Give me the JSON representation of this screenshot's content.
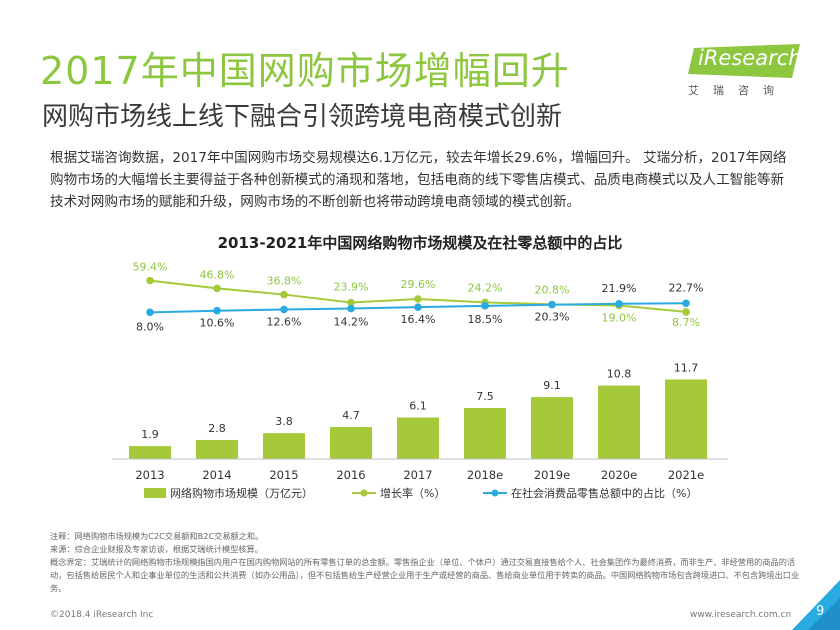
{
  "page": {
    "title": "2017年中国网购市场增幅回升",
    "subtitle": "网购市场线上线下融合引领跨境电商模式创新",
    "intro": "根据艾瑞咨询数据，2017年中国网购市场交易规模达6.1万亿元，较去年增长29.6%，增幅回升。 艾瑞分析，2017年网络购物市场的大幅增长主要得益于各种创新模式的涌现和落地，包括电商的线下零售店模式、品质电商模式以及人工智能等新技术对网购市场的赋能和升级，网购市场的不断创新也将带动跨境电商领域的模式创新。",
    "logo_text": "iResearch",
    "logo_cn": "艾瑞咨询",
    "notes": [
      "注释：网络购物市场规模为C2C交易额和B2C交易额之和。",
      "来源：综合企业财报及专家访谈，根据艾瑞统计模型核算。",
      "概念界定：艾瑞统计的网络购物市场规模指国内用户在国内购物网站的所有零售订单的总金额。零售指企业（单位、个体户）通过交易直接售给个人、社会集团作为最终消费，而非生产、非经营用的商品的活动，包括售给居民个人和企事业单位的生活和公共消费（如办公用品），但不包括售给生产经营企业用于生产或经营的商品、售给商业单位用于转卖的商品。中国网络购物市场包含跨境进口、不包含跨境出口业务。"
    ],
    "footer_left": "©2018.4 iResearch Inc",
    "footer_right": "www.iresearch.com.cn",
    "page_number": "9"
  },
  "colors": {
    "accent_green": "#8dc63f",
    "bar": "#a6c93a",
    "growth_line": "#a6c93a",
    "share_line": "#29abe2",
    "growth_label": "#8dc63f",
    "share_label": "#333333"
  },
  "chart_data": {
    "type": "bar",
    "title": "2013-2021年中国网络购物市场规模及在社零总额中的占比",
    "categories": [
      "2013",
      "2014",
      "2015",
      "2016",
      "2017",
      "2018e",
      "2019e",
      "2020e",
      "2021e"
    ],
    "series": [
      {
        "name": "网络购物市场规模（万亿元）",
        "type": "bar",
        "values": [
          1.9,
          2.8,
          3.8,
          4.7,
          6.1,
          7.5,
          9.1,
          10.8,
          11.7
        ]
      },
      {
        "name": "增长率（%）",
        "type": "line",
        "values": [
          59.4,
          46.8,
          36.8,
          23.9,
          29.6,
          24.2,
          20.8,
          19.0,
          8.7
        ]
      },
      {
        "name": "在社会消费品零售总额中的占比（%）",
        "type": "line",
        "values": [
          8.0,
          10.6,
          12.6,
          14.2,
          16.4,
          18.5,
          20.3,
          21.9,
          22.7
        ]
      }
    ],
    "growth_labels": [
      "59.4%",
      "46.8%",
      "36.8%",
      "23.9%",
      "29.6%",
      "24.2%",
      "20.8%",
      "19.0%",
      "8.7%"
    ],
    "share_labels": [
      "8.0%",
      "10.6%",
      "12.6%",
      "14.2%",
      "16.4%",
      "18.5%",
      "20.3%",
      "21.9%",
      "22.7%"
    ],
    "bar_labels": [
      "1.9",
      "2.8",
      "3.8",
      "4.7",
      "6.1",
      "7.5",
      "9.1",
      "10.8",
      "11.7"
    ],
    "legend_position": "bottom",
    "grid": false
  }
}
